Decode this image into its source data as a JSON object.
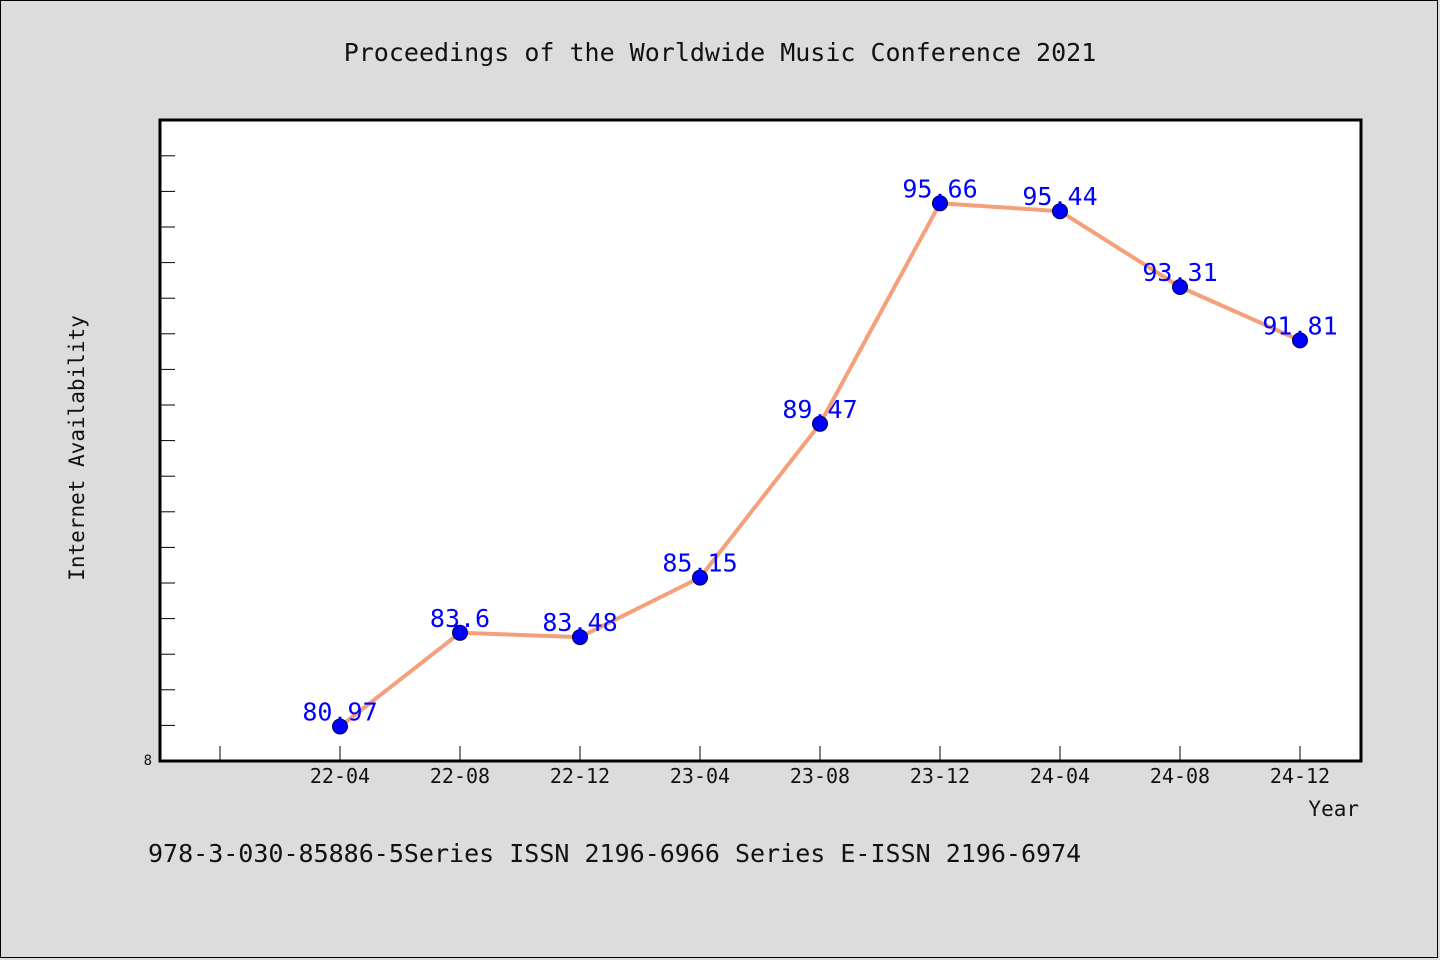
{
  "chart_data": {
    "type": "line",
    "title": "Proceedings of the Worldwide Music Conference 2021",
    "xlabel": "Year",
    "ylabel": "Internet Availability",
    "categories": [
      "22-04",
      "22-08",
      "22-12",
      "23-04",
      "23-08",
      "23-12",
      "24-04",
      "24-08",
      "24-12"
    ],
    "series": [
      {
        "values": [
          80.97,
          83.6,
          83.48,
          85.15,
          89.47,
          95.66,
          95.44,
          93.31,
          91.81
        ]
      }
    ],
    "data_labels": [
      "80.97",
      "83.6",
      "83.48",
      "85.15",
      "89.47",
      "95.66",
      "95.44",
      "93.31",
      "91.81"
    ],
    "y_tick_label": "8",
    "ylim": [
      80,
      98
    ],
    "grid": false,
    "line_color": "#f4a07a",
    "marker_color": "#0000ff",
    "label_color": "#0000ff"
  },
  "footer_text": "978-3-030-85886-5Series ISSN 2196-6966 Series E-ISSN 2196-6974"
}
